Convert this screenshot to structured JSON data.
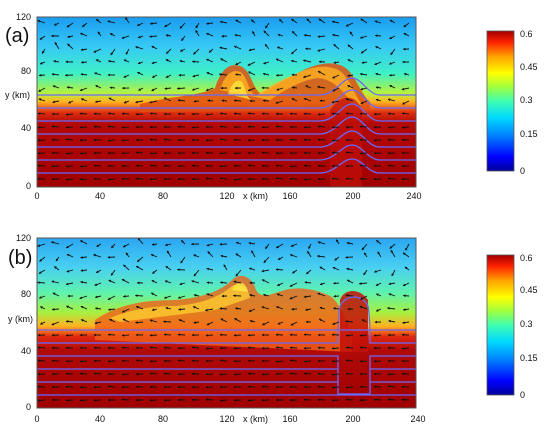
{
  "panels": [
    {
      "label": "(a)",
      "ylabel": "y (km)",
      "xlabel": "x (km)",
      "y_ticks": [
        "120",
        "80",
        "40",
        "0"
      ],
      "x_ticks": [
        "0",
        "40",
        "80",
        "120",
        "160",
        "200",
        "240"
      ],
      "colorbar": {
        "ticks": [
          "0.6",
          "0.45",
          "0.3",
          "0.15",
          "0"
        ]
      }
    },
    {
      "label": "(b)",
      "ylabel": "y (km)",
      "xlabel": "x (km)",
      "y_ticks": [
        "120",
        "80",
        "40",
        "0"
      ],
      "x_ticks": [
        "0",
        "40",
        "80",
        "120",
        "160",
        "200",
        "240"
      ],
      "colorbar": {
        "ticks": [
          "0.6",
          "0.45",
          "0.3",
          "0.15",
          "0"
        ]
      }
    }
  ],
  "colors": {
    "colormap": [
      "#00009a",
      "#0000ff",
      "#0080ff",
      "#00d8ff",
      "#40ffb0",
      "#a0ff40",
      "#ffff00",
      "#ffa000",
      "#ff2000",
      "#a00000"
    ],
    "frame": "#555555",
    "contour": "#6a6aff"
  }
}
